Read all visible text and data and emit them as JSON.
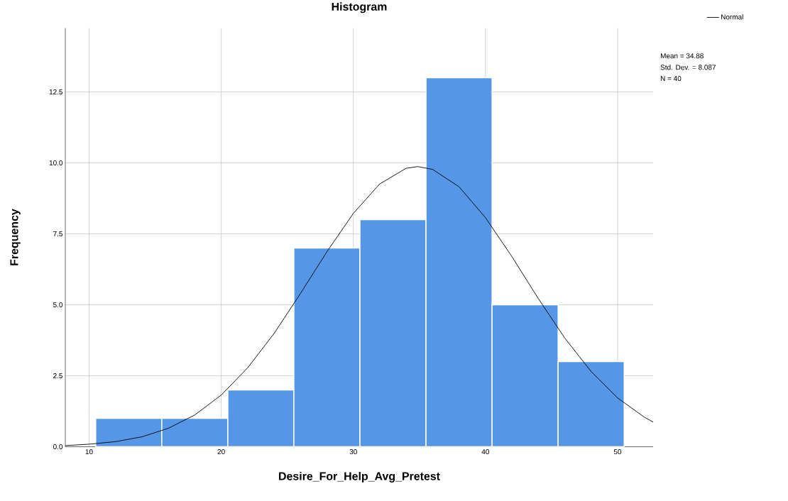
{
  "chart_data": {
    "type": "histogram",
    "title": "Histogram",
    "xlabel": "Desire_For_Help_Avg_Pretest",
    "ylabel": "Frequency",
    "bins": [
      10.5,
      15.5,
      20.5,
      25.5,
      30.5,
      35.5,
      40.5,
      45.5,
      50.5
    ],
    "values": [
      1,
      1,
      2,
      7,
      8,
      13,
      5,
      3
    ],
    "color": "#5596e6",
    "series": [
      {
        "name": "Normal",
        "type": "line",
        "color": "#000000",
        "x": [
          8.2,
          10,
          12,
          14,
          16,
          18,
          20,
          22,
          24,
          26,
          28,
          30,
          32,
          34,
          34.88,
          36,
          38,
          40,
          42,
          44,
          46,
          48,
          50,
          52,
          52.69
        ],
        "values": [
          0.04,
          0.09,
          0.18,
          0.35,
          0.65,
          1.12,
          1.82,
          2.78,
          3.99,
          5.4,
          6.87,
          8.22,
          9.26,
          9.81,
          9.87,
          9.77,
          9.16,
          8.07,
          6.7,
          5.22,
          3.83,
          2.65,
          1.72,
          1.05,
          0.87
        ]
      }
    ],
    "xlim": [
      8.2,
      52.69
    ],
    "ylim": [
      0,
      14.75
    ],
    "xticks": [
      10,
      20,
      30,
      40,
      50
    ],
    "yticks": [
      {
        "value": 0,
        "label": "0.0"
      },
      {
        "value": 2.5,
        "label": "2.5"
      },
      {
        "value": 5,
        "label": "5.0"
      },
      {
        "value": 7.5,
        "label": "7.5"
      },
      {
        "value": 10,
        "label": "10.0"
      },
      {
        "value": 12.5,
        "label": "12.5"
      }
    ],
    "grid": true,
    "legend": "top right",
    "marker": "none",
    "line_style": "solid",
    "annotations": [
      "Mean = 34.88",
      "Std. Dev. = 8.087",
      "N = 40"
    ]
  }
}
